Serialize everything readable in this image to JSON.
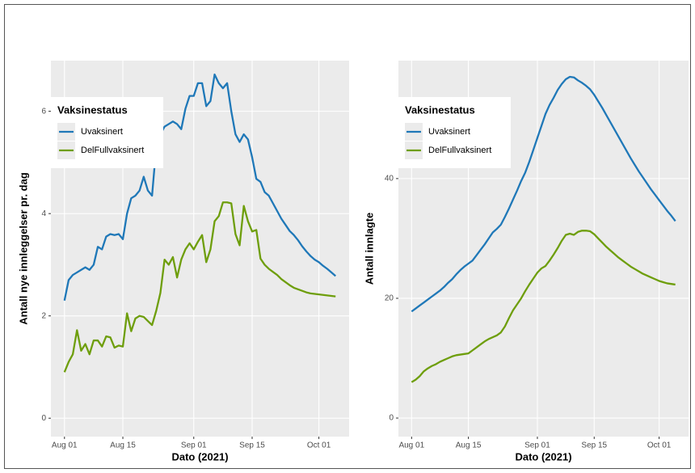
{
  "chart_data": [
    {
      "type": "line",
      "x_label": "Dato (2021)",
      "y_label": "Antall nye innleggelser pr. dag",
      "legend_title": "Vaksinestatus",
      "legend": "top-left",
      "x": [
        "Aug 01",
        "Aug 02",
        "Aug 03",
        "Aug 04",
        "Aug 05",
        "Aug 06",
        "Aug 07",
        "Aug 08",
        "Aug 09",
        "Aug 10",
        "Aug 11",
        "Aug 12",
        "Aug 13",
        "Aug 14",
        "Aug 15",
        "Aug 16",
        "Aug 17",
        "Aug 18",
        "Aug 19",
        "Aug 20",
        "Aug 21",
        "Aug 22",
        "Aug 23",
        "Aug 24",
        "Aug 25",
        "Aug 26",
        "Aug 27",
        "Aug 28",
        "Aug 29",
        "Aug 30",
        "Aug 31",
        "Sep 01",
        "Sep 02",
        "Sep 03",
        "Sep 04",
        "Sep 05",
        "Sep 06",
        "Sep 07",
        "Sep 08",
        "Sep 09",
        "Sep 10",
        "Sep 11",
        "Sep 12",
        "Sep 13",
        "Sep 14",
        "Sep 15",
        "Sep 16",
        "Sep 17",
        "Sep 18",
        "Sep 19",
        "Sep 20",
        "Sep 21",
        "Sep 22",
        "Sep 23",
        "Sep 24",
        "Sep 25",
        "Sep 26",
        "Sep 27",
        "Sep 28",
        "Sep 29",
        "Sep 30",
        "Oct 01",
        "Oct 02",
        "Oct 03",
        "Oct 04",
        "Oct 05"
      ],
      "xticks": [
        "Aug 01",
        "Aug 15",
        "Sep 01",
        "Sep 15",
        "Oct 01"
      ],
      "ylim": [
        -0.36,
        6.99
      ],
      "yticks": [
        0,
        2,
        4,
        6
      ],
      "grid": true,
      "series": [
        {
          "name": "Uvaksinert",
          "color": "#1f78b8",
          "values": [
            2.3,
            2.7,
            2.8,
            2.85,
            2.9,
            2.95,
            2.9,
            3.0,
            3.35,
            3.3,
            3.55,
            3.6,
            3.58,
            3.6,
            3.5,
            4.0,
            4.3,
            4.35,
            4.45,
            4.72,
            4.45,
            4.35,
            5.3,
            5.55,
            5.7,
            5.75,
            5.8,
            5.75,
            5.65,
            6.05,
            6.3,
            6.3,
            6.55,
            6.55,
            6.1,
            6.2,
            6.72,
            6.55,
            6.45,
            6.55,
            6.0,
            5.55,
            5.4,
            5.55,
            5.45,
            5.1,
            4.68,
            4.62,
            4.42,
            4.35,
            4.2,
            4.05,
            3.9,
            3.78,
            3.66,
            3.58,
            3.48,
            3.36,
            3.26,
            3.17,
            3.1,
            3.05,
            2.98,
            2.92,
            2.85,
            2.78
          ]
        },
        {
          "name": "DelFullvaksinert",
          "color": "#6e9e0c",
          "values": [
            0.9,
            1.1,
            1.25,
            1.72,
            1.32,
            1.45,
            1.25,
            1.52,
            1.52,
            1.4,
            1.6,
            1.58,
            1.38,
            1.42,
            1.4,
            2.05,
            1.7,
            1.95,
            2.0,
            1.98,
            1.9,
            1.82,
            2.1,
            2.45,
            3.1,
            3.0,
            3.15,
            2.75,
            3.1,
            3.3,
            3.42,
            3.3,
            3.45,
            3.58,
            3.05,
            3.3,
            3.85,
            3.95,
            4.22,
            4.22,
            4.2,
            3.6,
            3.38,
            4.15,
            3.85,
            3.65,
            3.68,
            3.12,
            3.0,
            2.92,
            2.86,
            2.8,
            2.72,
            2.66,
            2.6,
            2.55,
            2.52,
            2.49,
            2.46,
            2.44,
            2.43,
            2.42,
            2.41,
            2.4,
            2.39,
            2.38
          ]
        }
      ]
    },
    {
      "type": "line",
      "x_label": "Dato (2021)",
      "y_label": "Antall innlagte",
      "legend_title": "Vaksinestatus",
      "legend": "top-left",
      "x": [
        "Aug 01",
        "Aug 02",
        "Aug 03",
        "Aug 04",
        "Aug 05",
        "Aug 06",
        "Aug 07",
        "Aug 08",
        "Aug 09",
        "Aug 10",
        "Aug 11",
        "Aug 12",
        "Aug 13",
        "Aug 14",
        "Aug 15",
        "Aug 16",
        "Aug 17",
        "Aug 18",
        "Aug 19",
        "Aug 20",
        "Aug 21",
        "Aug 22",
        "Aug 23",
        "Aug 24",
        "Aug 25",
        "Aug 26",
        "Aug 27",
        "Aug 28",
        "Aug 29",
        "Aug 30",
        "Aug 31",
        "Sep 01",
        "Sep 02",
        "Sep 03",
        "Sep 04",
        "Sep 05",
        "Sep 06",
        "Sep 07",
        "Sep 08",
        "Sep 09",
        "Sep 10",
        "Sep 11",
        "Sep 12",
        "Sep 13",
        "Sep 14",
        "Sep 15",
        "Sep 16",
        "Sep 17",
        "Sep 18",
        "Sep 19",
        "Sep 20",
        "Sep 21",
        "Sep 22",
        "Sep 23",
        "Sep 24",
        "Sep 25",
        "Sep 26",
        "Sep 27",
        "Sep 28",
        "Sep 29",
        "Sep 30",
        "Oct 01",
        "Oct 02",
        "Oct 03",
        "Oct 04",
        "Oct 05"
      ],
      "xticks": [
        "Aug 01",
        "Aug 15",
        "Sep 01",
        "Sep 15",
        "Oct 01"
      ],
      "ylim": [
        -3.1,
        59.7
      ],
      "yticks": [
        0,
        20,
        40
      ],
      "grid": true,
      "series": [
        {
          "name": "Uvaksinert",
          "color": "#1f78b8",
          "values": [
            17.8,
            18.3,
            18.8,
            19.3,
            19.8,
            20.3,
            20.8,
            21.3,
            21.9,
            22.6,
            23.2,
            24.0,
            24.7,
            25.3,
            25.8,
            26.3,
            27.2,
            28.1,
            29.0,
            30.0,
            31.0,
            31.6,
            32.3,
            33.6,
            35.0,
            36.5,
            38.0,
            39.6,
            41.0,
            42.8,
            44.8,
            46.8,
            48.8,
            50.8,
            52.3,
            53.5,
            54.8,
            55.8,
            56.6,
            57.0,
            56.9,
            56.4,
            56.0,
            55.5,
            54.9,
            54.0,
            52.9,
            51.8,
            50.6,
            49.4,
            48.2,
            47.0,
            45.8,
            44.6,
            43.4,
            42.3,
            41.2,
            40.2,
            39.2,
            38.2,
            37.3,
            36.4,
            35.5,
            34.6,
            33.8,
            32.9
          ]
        },
        {
          "name": "DelFullvaksinert",
          "color": "#6e9e0c",
          "values": [
            6.0,
            6.4,
            7.0,
            7.8,
            8.3,
            8.7,
            9.0,
            9.4,
            9.7,
            10.0,
            10.3,
            10.5,
            10.6,
            10.7,
            10.8,
            11.3,
            11.8,
            12.3,
            12.8,
            13.2,
            13.5,
            13.8,
            14.3,
            15.3,
            16.7,
            18.0,
            19.0,
            20.0,
            21.2,
            22.3,
            23.3,
            24.3,
            25.0,
            25.4,
            26.3,
            27.3,
            28.4,
            29.6,
            30.6,
            30.8,
            30.6,
            31.1,
            31.3,
            31.3,
            31.2,
            30.7,
            30.0,
            29.3,
            28.6,
            28.0,
            27.4,
            26.8,
            26.3,
            25.8,
            25.3,
            24.9,
            24.5,
            24.1,
            23.8,
            23.5,
            23.2,
            22.9,
            22.7,
            22.5,
            22.4,
            22.3
          ]
        }
      ]
    }
  ]
}
